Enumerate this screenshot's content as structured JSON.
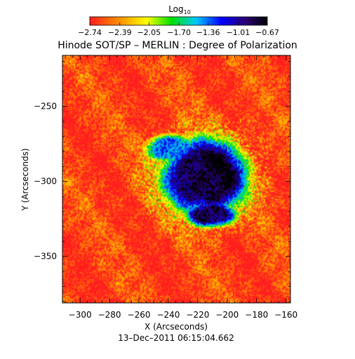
{
  "chart_data": {
    "type": "heatmap",
    "title": "Hinode SOT/SP – MERLIN : Degree of Polarization",
    "subtitle": "13–Dec–2011 06:15:04.662",
    "xlabel": "X (Arcseconds)",
    "ylabel": "Y (Arcseconds)",
    "xlim": [
      -312,
      -157
    ],
    "ylim": [
      -381,
      -216
    ],
    "x_ticks": [
      -300,
      -280,
      -260,
      -240,
      -220,
      -200,
      -180,
      -160
    ],
    "x_tick_labels": [
      "−300",
      "−280",
      "−260",
      "−240",
      "−220",
      "−200",
      "−180",
      "−160"
    ],
    "y_ticks": [
      -250,
      -300,
      -350
    ],
    "y_tick_labels": [
      "−250",
      "−300",
      "−350"
    ],
    "colorbar": {
      "label_base": "Log",
      "label_sub": "10",
      "range": [
        -2.74,
        -0.67
      ],
      "ticks": [
        -2.74,
        -2.39,
        -2.05,
        -1.7,
        -1.36,
        -1.01,
        -0.67
      ],
      "tick_labels": [
        "−2.74",
        "−2.39",
        "−2.05",
        "−1.70",
        "−1.36",
        "−1.01",
        "−0.67"
      ]
    },
    "features": [
      {
        "x": -215,
        "y": -297,
        "rx": 17,
        "ry": 15,
        "peak": -0.72
      },
      {
        "x": -211,
        "y": -322,
        "rx": 10,
        "ry": 5,
        "peak": -0.75
      },
      {
        "x": -238,
        "y": -278,
        "rx": 11,
        "ry": 6,
        "peak": -1.25
      }
    ],
    "grid": false,
    "colors": [
      "#ff1e1e",
      "#ff9900",
      "#ffff00",
      "#00e000",
      "#00c8ff",
      "#0000ff",
      "#2a0070",
      "#000000"
    ]
  }
}
